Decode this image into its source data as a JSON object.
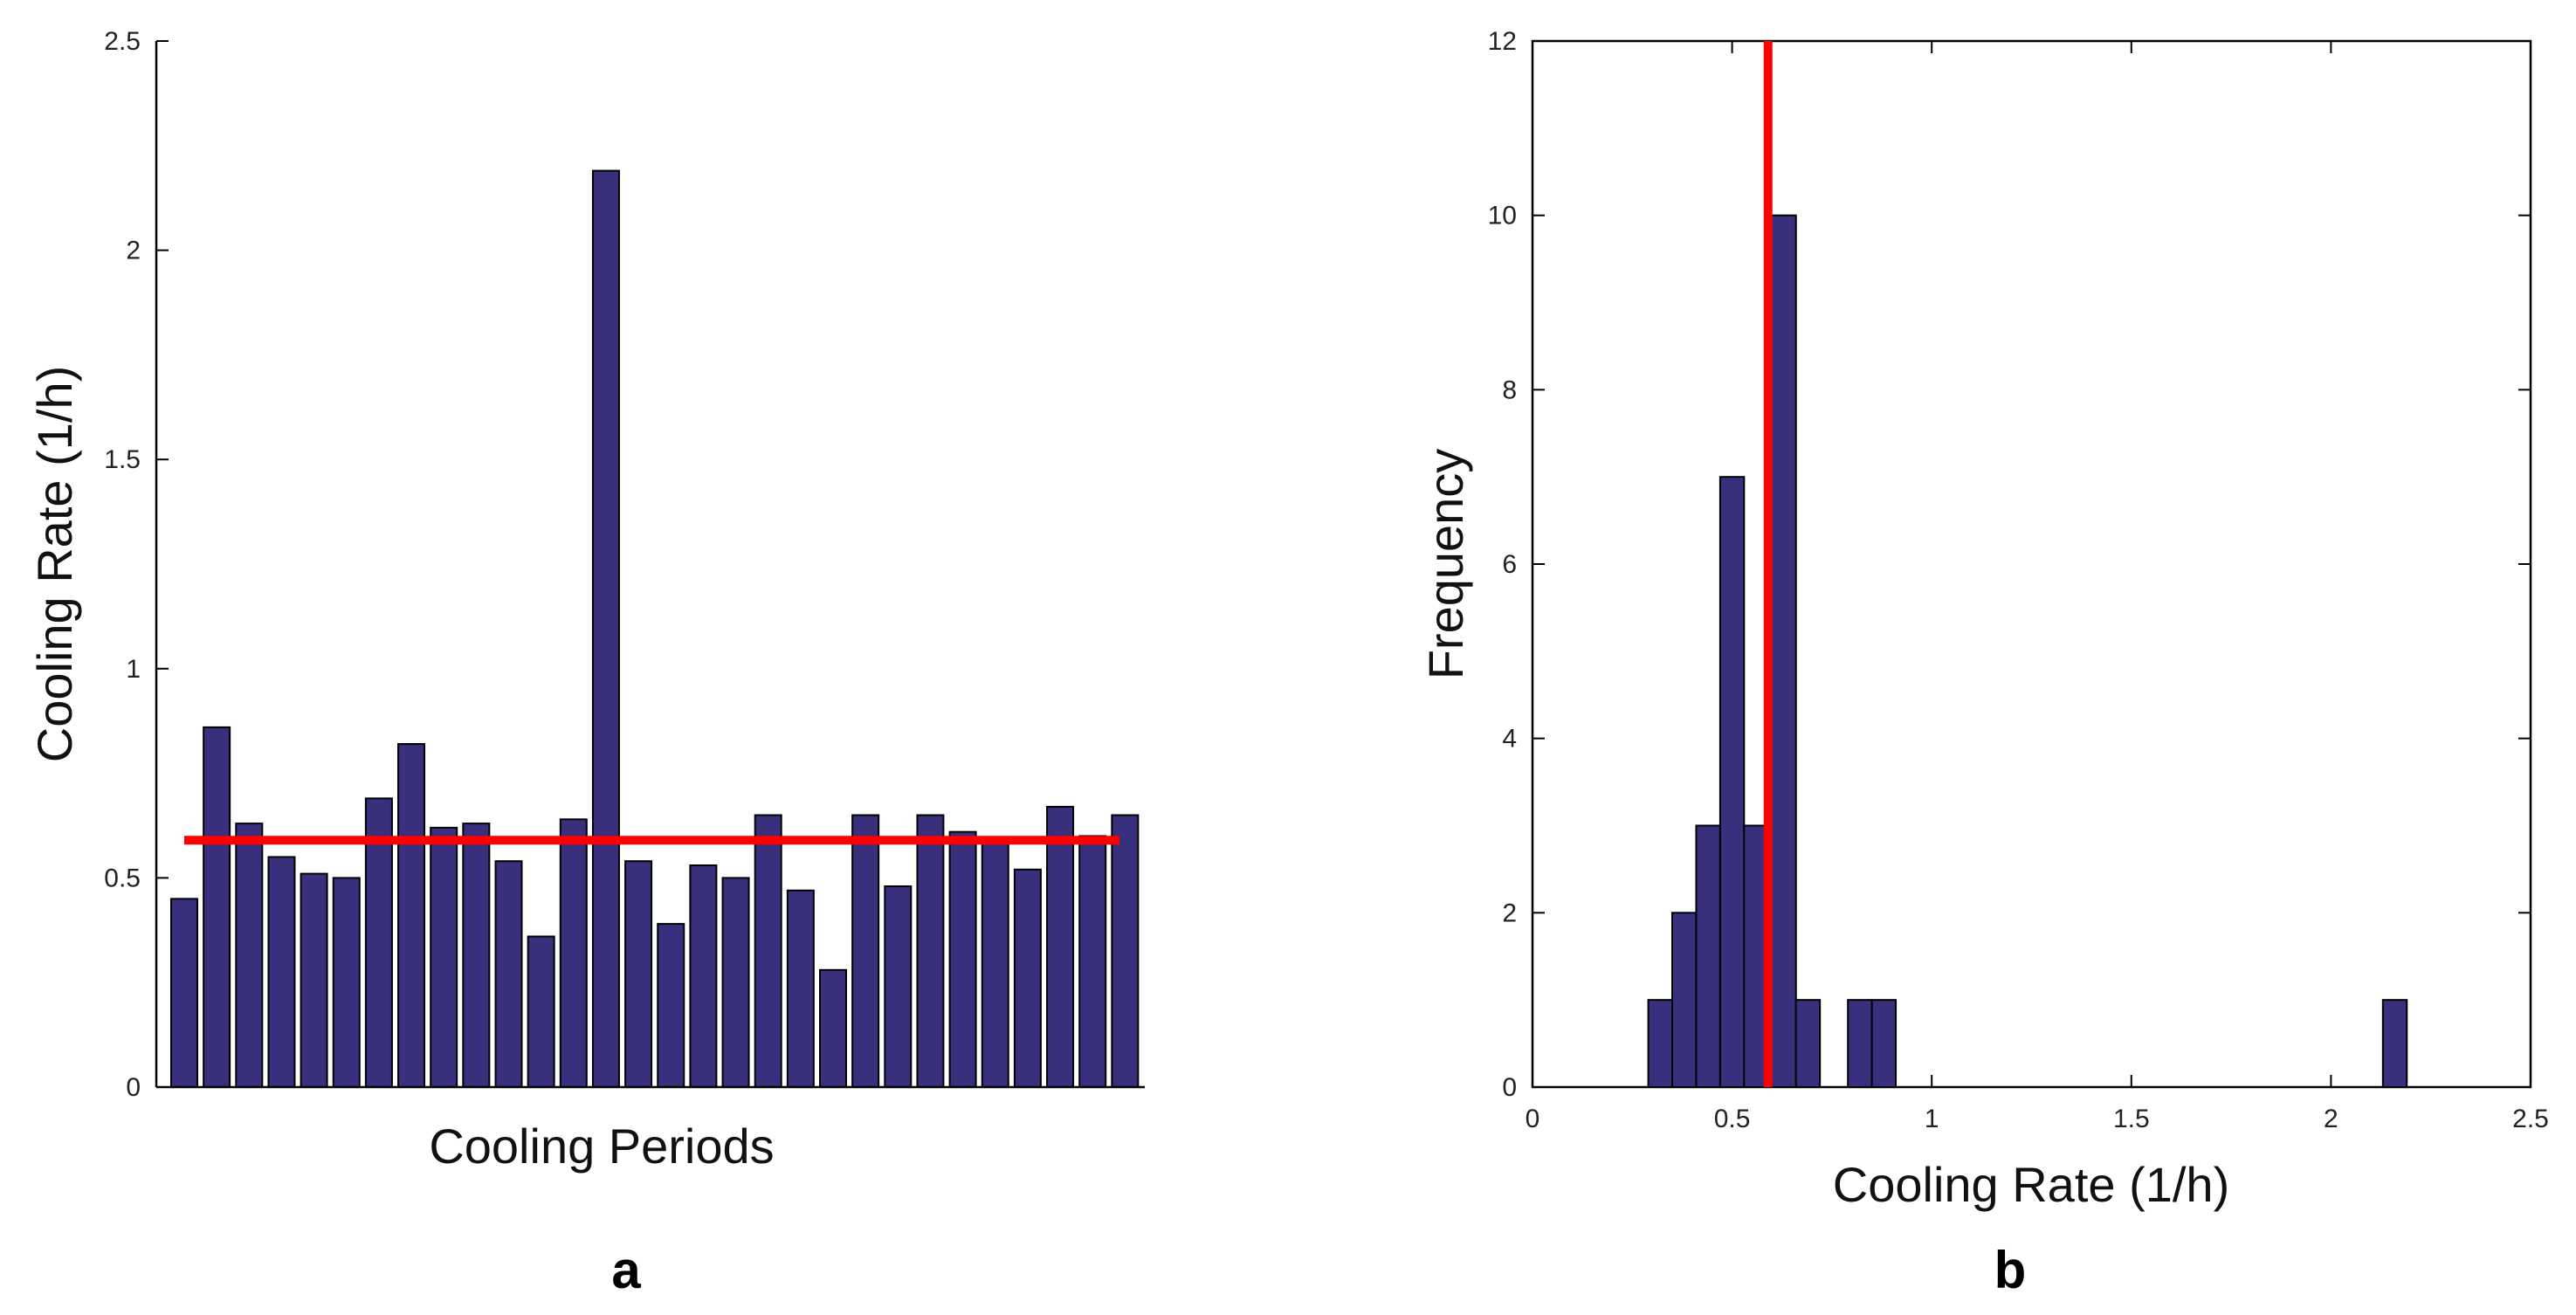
{
  "chart_data": [
    {
      "type": "bar",
      "panel_label": "a",
      "xlabel": "Cooling Periods",
      "ylabel": "Cooling Rate (1/h)",
      "ylim": [
        0,
        2.5
      ],
      "yticks": [
        "0",
        "0.5",
        "1",
        "1.5",
        "2",
        "2.5"
      ],
      "values": [
        0.45,
        0.86,
        0.63,
        0.55,
        0.51,
        0.5,
        0.69,
        0.82,
        0.62,
        0.63,
        0.54,
        0.36,
        0.64,
        2.19,
        0.54,
        0.39,
        0.53,
        0.5,
        0.65,
        0.47,
        0.28,
        0.65,
        0.48,
        0.65,
        0.61,
        0.59,
        0.52,
        0.67,
        0.6,
        0.65
      ],
      "mean_line": 0.59,
      "bar_color": "#38307d",
      "line_color": "#ff0000",
      "grid": false
    },
    {
      "type": "bar",
      "subtype": "histogram",
      "panel_label": "b",
      "xlabel": "Cooling Rate (1/h)",
      "ylabel": "Frequency",
      "xlim": [
        0,
        2.5
      ],
      "ylim": [
        0,
        12
      ],
      "xticks": [
        "0",
        "0.5",
        "1",
        "1.5",
        "2",
        "2.5"
      ],
      "yticks": [
        "0",
        "2",
        "4",
        "6",
        "8",
        "10",
        "12"
      ],
      "bins": [
        {
          "x0": 0.29,
          "x1": 0.35,
          "count": 1
        },
        {
          "x0": 0.35,
          "x1": 0.41,
          "count": 2
        },
        {
          "x0": 0.41,
          "x1": 0.47,
          "count": 3
        },
        {
          "x0": 0.47,
          "x1": 0.53,
          "count": 7
        },
        {
          "x0": 0.53,
          "x1": 0.59,
          "count": 3
        },
        {
          "x0": 0.59,
          "x1": 0.66,
          "count": 10
        },
        {
          "x0": 0.66,
          "x1": 0.72,
          "count": 1
        },
        {
          "x0": 0.72,
          "x1": 0.79,
          "count": 0
        },
        {
          "x0": 0.79,
          "x1": 0.85,
          "count": 1
        },
        {
          "x0": 0.85,
          "x1": 0.91,
          "count": 1
        },
        {
          "x0": 0.91,
          "x1": 2.13,
          "count": 0
        },
        {
          "x0": 2.13,
          "x1": 2.19,
          "count": 1
        }
      ],
      "mean_line": 0.59,
      "bar_color": "#38307d",
      "line_color": "#ff0000",
      "grid": false
    }
  ]
}
